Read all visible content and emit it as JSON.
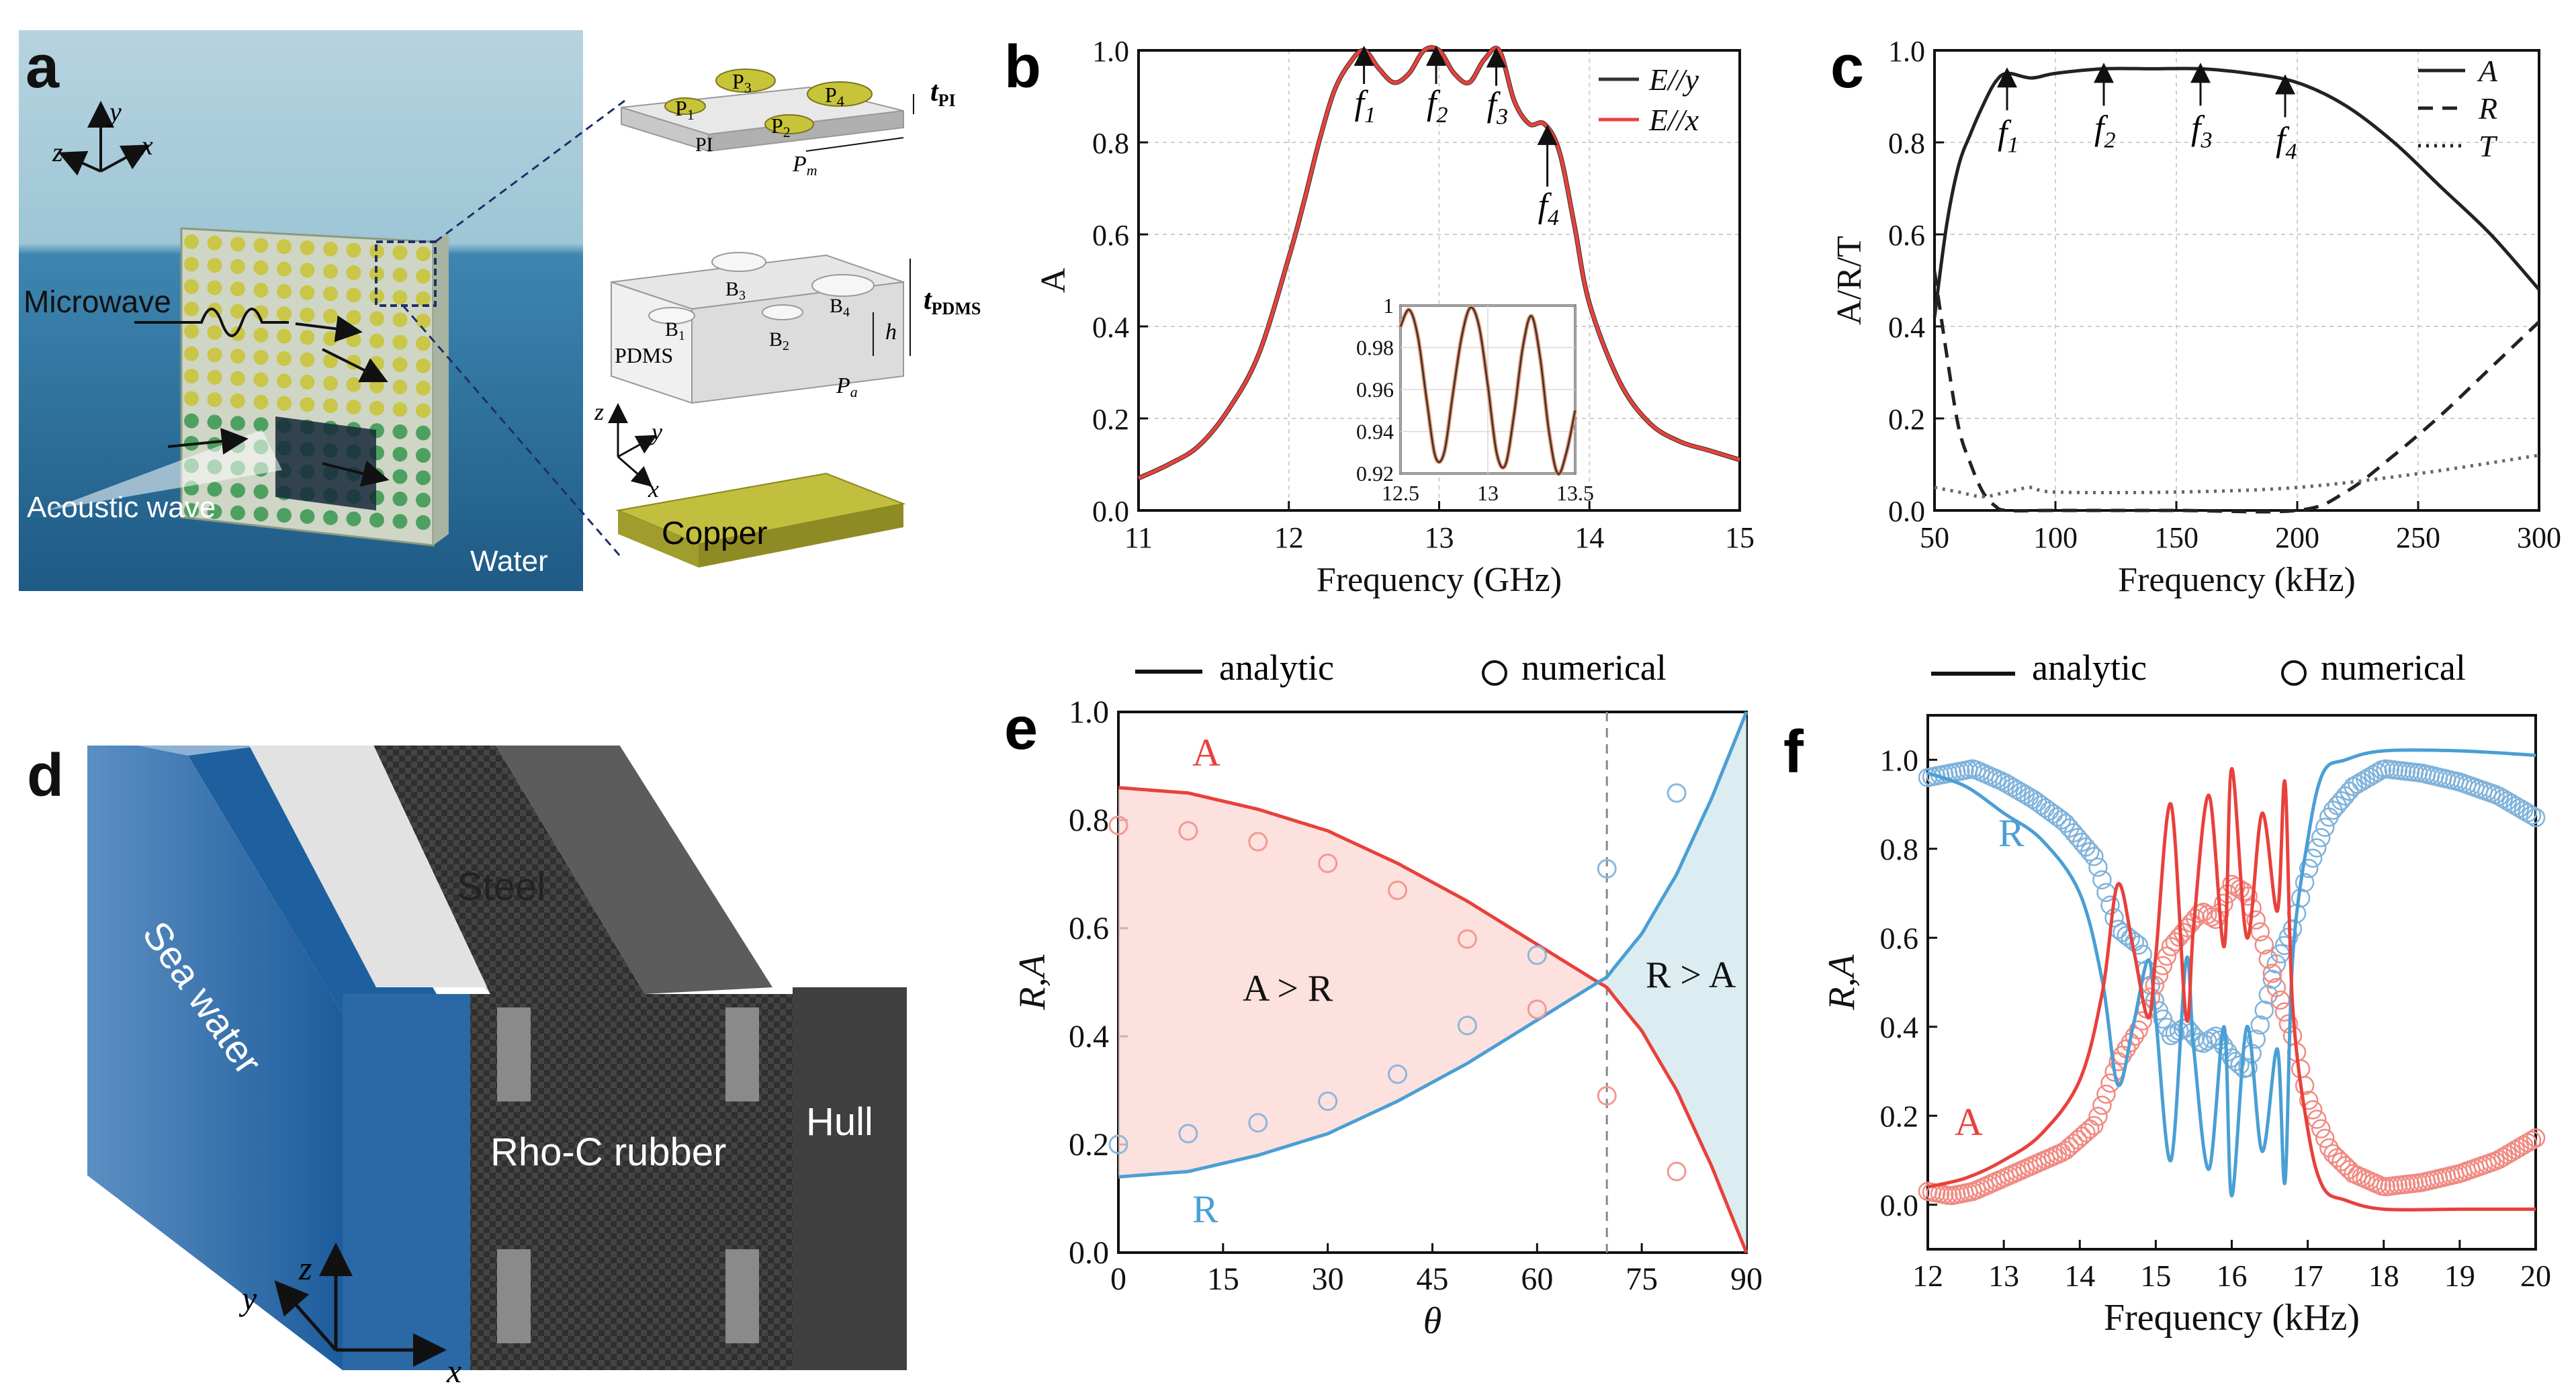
{
  "panels": {
    "a": {
      "letter": "a",
      "axes_main": {
        "z": "z",
        "y": "y",
        "x": "x"
      },
      "axes_small": {
        "z": "z",
        "y": "y",
        "x": "x"
      },
      "labels": {
        "microwave": "Microwave",
        "acoustic": "Acoustic wave",
        "water": "Water",
        "copper": "Copper",
        "pi": "PI",
        "pdms": "PDMS",
        "t": "t",
        "t_pi_sub": "PI",
        "t_pdms_sub": "PDMS",
        "h": "h",
        "P": "P",
        "pm_sub": "m",
        "pa_sub": "a",
        "patch": "P",
        "bump": "B",
        "idx1": "1",
        "idx2": "2",
        "idx3": "3",
        "idx4": "4"
      },
      "colors": {
        "sky": "#9ec6d6",
        "sea": "#2a6f99",
        "patch": "#c8c43a",
        "copper": "#b8b43a"
      }
    },
    "b": {
      "letter": "b",
      "markers": {
        "f": "f",
        "i1": "1",
        "i2": "2",
        "i3": "3",
        "i4": "4"
      }
    },
    "c": {
      "letter": "c",
      "markers": {
        "f": "f",
        "i1": "1",
        "i2": "2",
        "i3": "3",
        "i4": "4"
      }
    },
    "d": {
      "letter": "d",
      "labels": {
        "sea": "Sea water",
        "steel": "Steel",
        "rubber": "Rho-C rubber",
        "hull": "Hull",
        "x": "x",
        "y": "y",
        "z": "z"
      },
      "colors": {
        "sea": "#1f5f9e",
        "steel": "#d9d9d9",
        "rubber": "#3a3a3a",
        "hull": "#4a4a4a"
      }
    },
    "e": {
      "letter": "e",
      "legend": {
        "analytic": "analytic",
        "numerical": "numerical"
      },
      "region_labels": {
        "left": "A > R",
        "right": "R > A"
      },
      "curve_labels": {
        "A": "A",
        "R": "R"
      }
    },
    "f": {
      "letter": "f",
      "legend": {
        "analytic": "analytic",
        "numerical": "numerical"
      },
      "curve_labels": {
        "A": "A",
        "R": "R"
      }
    }
  },
  "chart_data": [
    {
      "id": "b",
      "type": "line",
      "title": "",
      "xlabel": "Frequency (GHz)",
      "ylabel": "A",
      "xlim": [
        11,
        15
      ],
      "ylim": [
        0,
        1.0
      ],
      "xticks": [
        11,
        12,
        13,
        14,
        15
      ],
      "yticks": [
        0.0,
        0.2,
        0.4,
        0.6,
        0.8,
        1.0
      ],
      "xtick_labels": [
        "11",
        "12",
        "13",
        "14",
        "15"
      ],
      "ytick_labels": [
        "0.0",
        "0.2",
        "0.4",
        "0.6",
        "0.8",
        "1.0"
      ],
      "grid": true,
      "legend": "top-right",
      "series": [
        {
          "name": "E//y",
          "color": "#333333",
          "x": [
            11.0,
            11.2,
            11.4,
            11.6,
            11.8,
            12.0,
            12.1,
            12.2,
            12.3,
            12.4,
            12.5,
            12.6,
            12.7,
            12.8,
            12.9,
            13.0,
            13.1,
            13.2,
            13.3,
            13.4,
            13.5,
            13.6,
            13.7,
            13.8,
            13.9,
            14.0,
            14.2,
            14.4,
            14.6,
            14.8,
            15.0
          ],
          "y": [
            0.07,
            0.1,
            0.14,
            0.22,
            0.34,
            0.55,
            0.67,
            0.8,
            0.91,
            0.97,
            1.0,
            0.96,
            0.93,
            0.95,
            1.0,
            1.0,
            0.95,
            0.93,
            0.98,
            1.0,
            0.89,
            0.84,
            0.84,
            0.78,
            0.62,
            0.45,
            0.28,
            0.19,
            0.15,
            0.13,
            0.11
          ]
        },
        {
          "name": "E//x",
          "color": "#e8413c",
          "x": [
            11.0,
            11.2,
            11.4,
            11.6,
            11.8,
            12.0,
            12.1,
            12.2,
            12.3,
            12.4,
            12.5,
            12.6,
            12.7,
            12.8,
            12.9,
            13.0,
            13.1,
            13.2,
            13.3,
            13.4,
            13.5,
            13.6,
            13.7,
            13.8,
            13.9,
            14.0,
            14.2,
            14.4,
            14.6,
            14.8,
            15.0
          ],
          "y": [
            0.07,
            0.1,
            0.14,
            0.22,
            0.34,
            0.55,
            0.67,
            0.8,
            0.91,
            0.97,
            1.0,
            0.96,
            0.93,
            0.95,
            1.0,
            1.0,
            0.95,
            0.93,
            0.98,
            1.0,
            0.89,
            0.84,
            0.84,
            0.78,
            0.62,
            0.45,
            0.28,
            0.19,
            0.15,
            0.13,
            0.11
          ]
        }
      ],
      "markers_x": [
        12.5,
        12.98,
        13.38,
        13.72
      ],
      "inset": {
        "xlim": [
          12.5,
          13.5
        ],
        "ylim": [
          0.92,
          1.0
        ],
        "xticks": [
          12.5,
          13,
          13.5
        ],
        "yticks": [
          0.92,
          0.94,
          0.96,
          0.98,
          1.0
        ],
        "xtick_labels": [
          "12.5",
          "13",
          "13.5"
        ],
        "ytick_labels": [
          "0.92",
          "0.94",
          "0.96",
          "0.98",
          "1"
        ],
        "x": [
          12.5,
          12.55,
          12.6,
          12.65,
          12.7,
          12.75,
          12.8,
          12.85,
          12.9,
          12.95,
          13.0,
          13.05,
          13.1,
          13.15,
          13.2,
          13.25,
          13.3,
          13.35,
          13.4,
          13.45,
          13.5
        ],
        "y": [
          0.99,
          0.998,
          0.985,
          0.955,
          0.928,
          0.93,
          0.958,
          0.985,
          0.999,
          0.99,
          0.962,
          0.93,
          0.924,
          0.948,
          0.98,
          0.995,
          0.975,
          0.94,
          0.92,
          0.93,
          0.95
        ]
      }
    },
    {
      "id": "c",
      "type": "line",
      "xlabel": "Frequency (kHz)",
      "ylabel": "A/R/T",
      "xlim": [
        50,
        300
      ],
      "ylim": [
        0,
        1.0
      ],
      "xticks": [
        50,
        100,
        150,
        200,
        250,
        300
      ],
      "yticks": [
        0.0,
        0.2,
        0.4,
        0.6,
        0.8,
        1.0
      ],
      "xtick_labels": [
        "50",
        "100",
        "150",
        "200",
        "250",
        "300"
      ],
      "ytick_labels": [
        "0.0",
        "0.2",
        "0.4",
        "0.6",
        "0.8",
        "1.0"
      ],
      "grid": true,
      "legend": "top-right",
      "series": [
        {
          "name": "A",
          "style": "solid",
          "x": [
            50,
            55,
            60,
            65,
            70,
            75,
            80,
            90,
            100,
            120,
            140,
            160,
            180,
            200,
            220,
            240,
            260,
            280,
            300
          ],
          "y": [
            0.42,
            0.62,
            0.75,
            0.82,
            0.88,
            0.93,
            0.95,
            0.94,
            0.95,
            0.96,
            0.96,
            0.96,
            0.95,
            0.93,
            0.88,
            0.8,
            0.7,
            0.6,
            0.48
          ]
        },
        {
          "name": "R",
          "style": "dashed",
          "x": [
            50,
            55,
            60,
            65,
            70,
            75,
            80,
            100,
            150,
            200,
            220,
            240,
            260,
            280,
            300
          ],
          "y": [
            0.52,
            0.34,
            0.18,
            0.1,
            0.04,
            0.01,
            0.0,
            0.0,
            0.0,
            0.0,
            0.04,
            0.12,
            0.21,
            0.31,
            0.41
          ]
        },
        {
          "name": "T",
          "style": "dotted",
          "x": [
            50,
            60,
            70,
            80,
            90,
            100,
            150,
            200,
            250,
            300
          ],
          "y": [
            0.05,
            0.04,
            0.03,
            0.04,
            0.05,
            0.04,
            0.04,
            0.05,
            0.08,
            0.12
          ]
        }
      ],
      "markers_x": [
        80,
        120,
        160,
        195
      ]
    },
    {
      "id": "e",
      "type": "line",
      "xlabel": "θ",
      "ylabel": "R,A",
      "xlim": [
        0,
        90
      ],
      "ylim": [
        0,
        1.0
      ],
      "xticks": [
        0,
        15,
        30,
        45,
        60,
        75,
        90
      ],
      "yticks": [
        0.0,
        0.2,
        0.4,
        0.6,
        0.8,
        1.0
      ],
      "xtick_labels": [
        "0",
        "15",
        "30",
        "45",
        "60",
        "75",
        "90"
      ],
      "ytick_labels": [
        "0.0",
        "0.2",
        "0.4",
        "0.6",
        "0.8",
        "1.0"
      ],
      "vline": 70,
      "series": [
        {
          "name": "A",
          "color": "#e8413c",
          "x": [
            0,
            10,
            20,
            30,
            40,
            50,
            60,
            65,
            70,
            75,
            80,
            85,
            90
          ],
          "y": [
            0.86,
            0.85,
            0.82,
            0.78,
            0.72,
            0.65,
            0.57,
            0.53,
            0.49,
            0.41,
            0.3,
            0.16,
            0.0
          ]
        },
        {
          "name": "R",
          "color": "#4a9fd4",
          "x": [
            0,
            10,
            20,
            30,
            40,
            50,
            60,
            65,
            70,
            75,
            80,
            85,
            90
          ],
          "y": [
            0.14,
            0.15,
            0.18,
            0.22,
            0.28,
            0.35,
            0.43,
            0.47,
            0.51,
            0.59,
            0.7,
            0.84,
            1.0
          ]
        }
      ],
      "numerical": [
        {
          "name": "A",
          "x": [
            0,
            10,
            20,
            30,
            40,
            50,
            60,
            70,
            80
          ],
          "y": [
            0.79,
            0.78,
            0.76,
            0.72,
            0.67,
            0.58,
            0.45,
            0.29,
            0.15
          ]
        },
        {
          "name": "R",
          "x": [
            0,
            10,
            20,
            30,
            40,
            50,
            60,
            70,
            80
          ],
          "y": [
            0.2,
            0.22,
            0.24,
            0.28,
            0.33,
            0.42,
            0.55,
            0.71,
            0.85
          ]
        }
      ]
    },
    {
      "id": "f",
      "type": "line",
      "xlabel": "Frequency (kHz)",
      "ylabel": "R,A",
      "xlim": [
        12,
        20
      ],
      "ylim": [
        -0.1,
        1.1
      ],
      "xticks": [
        12,
        13,
        14,
        15,
        16,
        17,
        18,
        19,
        20
      ],
      "yticks": [
        0.0,
        0.2,
        0.4,
        0.6,
        0.8,
        1.0
      ],
      "xtick_labels": [
        "12",
        "13",
        "14",
        "15",
        "16",
        "17",
        "18",
        "19",
        "20"
      ],
      "ytick_labels": [
        "0.0",
        "0.2",
        "0.4",
        "0.6",
        "0.8",
        "1.0"
      ],
      "series": [
        {
          "name": "R",
          "color": "#4a9fd4",
          "x": [
            12,
            12.5,
            13,
            13.5,
            14,
            14.3,
            14.5,
            14.7,
            14.9,
            15.0,
            15.2,
            15.4,
            15.5,
            15.7,
            15.9,
            16.0,
            16.2,
            16.4,
            16.6,
            16.7,
            16.8,
            17.0,
            17.2,
            17.5,
            18,
            19,
            20
          ],
          "y": [
            0.97,
            0.94,
            0.88,
            0.82,
            0.7,
            0.5,
            0.27,
            0.4,
            0.55,
            0.42,
            0.1,
            0.55,
            0.35,
            0.08,
            0.4,
            0.02,
            0.4,
            0.12,
            0.35,
            0.05,
            0.55,
            0.82,
            0.97,
            1.0,
            1.02,
            1.02,
            1.01
          ]
        },
        {
          "name": "A",
          "color": "#e8413c",
          "x": [
            12,
            12.5,
            13,
            13.5,
            14,
            14.3,
            14.5,
            14.7,
            14.9,
            15.0,
            15.2,
            15.4,
            15.5,
            15.7,
            15.9,
            16.0,
            16.2,
            16.4,
            16.6,
            16.7,
            16.8,
            17.0,
            17.2,
            17.5,
            18,
            19,
            20
          ],
          "y": [
            0.04,
            0.06,
            0.1,
            0.16,
            0.28,
            0.48,
            0.72,
            0.58,
            0.42,
            0.56,
            0.9,
            0.42,
            0.63,
            0.92,
            0.58,
            0.98,
            0.6,
            0.88,
            0.66,
            0.95,
            0.45,
            0.17,
            0.04,
            0.01,
            -0.01,
            -0.01,
            -0.01
          ]
        }
      ],
      "numerical": [
        {
          "name": "R",
          "x": [
            12,
            12.3,
            12.6,
            13,
            13.4,
            13.8,
            14.2,
            14.5,
            14.8,
            15.0,
            15.2,
            15.4,
            15.6,
            15.8,
            16.0,
            16.2,
            16.4,
            16.6,
            16.8,
            17.0,
            17.3,
            17.6,
            18,
            18.5,
            19,
            19.5,
            20
          ],
          "y": [
            0.96,
            0.97,
            0.98,
            0.95,
            0.91,
            0.86,
            0.78,
            0.62,
            0.58,
            0.45,
            0.38,
            0.4,
            0.36,
            0.38,
            0.33,
            0.3,
            0.42,
            0.55,
            0.62,
            0.75,
            0.88,
            0.94,
            0.98,
            0.97,
            0.95,
            0.92,
            0.87
          ]
        },
        {
          "name": "A",
          "x": [
            12,
            12.3,
            12.6,
            13,
            13.4,
            13.8,
            14.2,
            14.5,
            14.8,
            15.0,
            15.2,
            15.4,
            15.6,
            15.8,
            16.0,
            16.2,
            16.4,
            16.6,
            16.8,
            17.0,
            17.3,
            17.6,
            18,
            18.5,
            19,
            19.5,
            20
          ],
          "y": [
            0.03,
            0.02,
            0.03,
            0.06,
            0.09,
            0.12,
            0.18,
            0.32,
            0.4,
            0.5,
            0.58,
            0.62,
            0.66,
            0.64,
            0.72,
            0.7,
            0.6,
            0.48,
            0.38,
            0.24,
            0.12,
            0.07,
            0.04,
            0.05,
            0.07,
            0.1,
            0.15
          ]
        }
      ]
    }
  ]
}
